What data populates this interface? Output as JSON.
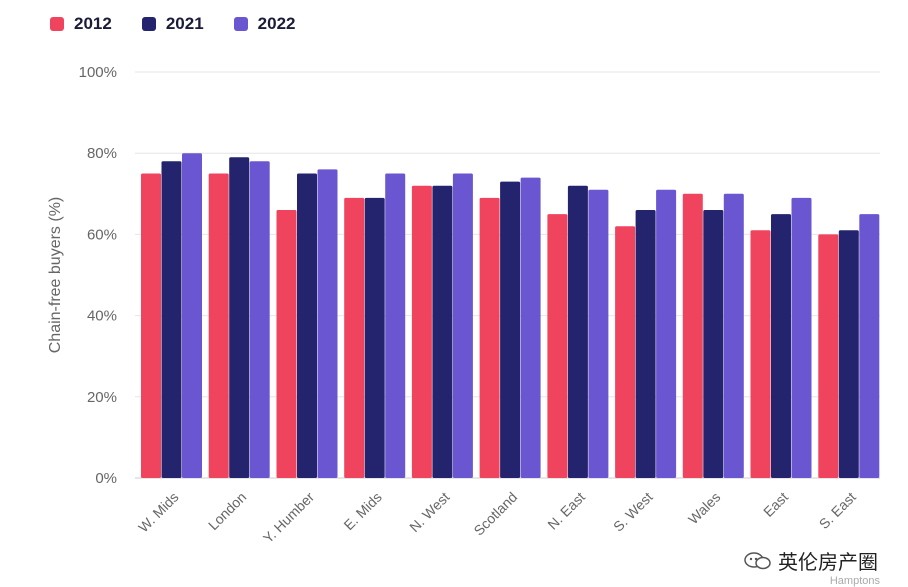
{
  "chart_data": {
    "type": "bar",
    "categories": [
      "W. Mids",
      "London",
      "Y. Humber",
      "E. Mids",
      "N. West",
      "Scotland",
      "N. East",
      "S. West",
      "Wales",
      "East",
      "S. East"
    ],
    "series": [
      {
        "name": "2012",
        "color": "#f0435e",
        "values": [
          75,
          75,
          66,
          69,
          72,
          69,
          65,
          62,
          70,
          61,
          60
        ]
      },
      {
        "name": "2021",
        "color": "#23236e",
        "values": [
          78,
          79,
          75,
          69,
          72,
          73,
          72,
          66,
          66,
          65,
          61
        ]
      },
      {
        "name": "2022",
        "color": "#6b56d1",
        "values": [
          80,
          78,
          76,
          75,
          75,
          74,
          71,
          71,
          70,
          69,
          65
        ]
      }
    ],
    "ylabel": "Chain-free buyers (%)",
    "xlabel": "",
    "ylim": [
      0,
      100
    ],
    "yticks": [
      "0%",
      "20%",
      "40%",
      "60%",
      "80%",
      "100%"
    ],
    "ytick_values": [
      0,
      20,
      40,
      60,
      80,
      100
    ],
    "grid": true,
    "legend_position": "top-left"
  },
  "watermark": {
    "text": "英伦房产圈",
    "source": "Hamptons",
    "icon": "wechat-icon"
  }
}
